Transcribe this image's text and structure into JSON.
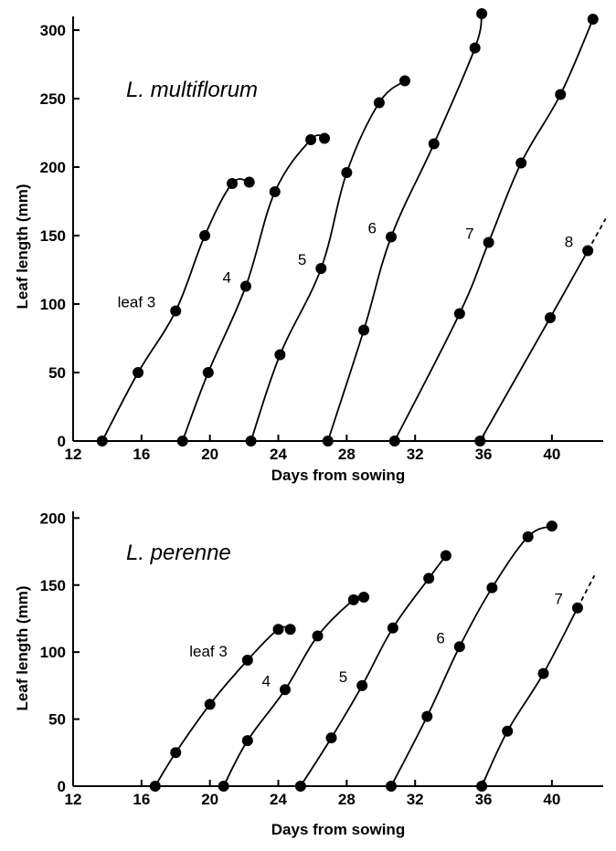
{
  "chart_data": [
    {
      "type": "line",
      "title": "L. multiflorum",
      "xlabel": "Days from sowing",
      "ylabel": "Leaf length (mm)",
      "xlim": [
        12,
        43
      ],
      "ylim": [
        0,
        310
      ],
      "x_ticks": [
        "12",
        "16",
        "20",
        "24",
        "28",
        "32",
        "36",
        "40"
      ],
      "y_ticks": [
        "0",
        "50",
        "100",
        "150",
        "200",
        "250",
        "300"
      ],
      "grid": false,
      "series": [
        {
          "name": "leaf 3",
          "x": [
            13.7,
            15.8,
            18.0,
            19.7,
            21.3,
            22.3
          ],
          "y": [
            0,
            50,
            95,
            150,
            188,
            189
          ]
        },
        {
          "name": "4",
          "x": [
            18.4,
            19.9,
            22.1,
            23.8,
            25.9,
            26.7
          ],
          "y": [
            0,
            50,
            113,
            182,
            220,
            221
          ]
        },
        {
          "name": "5",
          "x": [
            22.4,
            24.1,
            26.5,
            28.0,
            29.9,
            31.4
          ],
          "y": [
            0,
            63,
            126,
            196,
            247,
            263
          ]
        },
        {
          "name": "6",
          "x": [
            26.9,
            29.0,
            30.6,
            33.1,
            35.5,
            35.9
          ],
          "y": [
            0,
            81,
            149,
            217,
            287,
            312
          ]
        },
        {
          "name": "7",
          "x": [
            30.8,
            34.6,
            36.3,
            38.2,
            40.5,
            42.4
          ],
          "y": [
            0,
            93,
            145,
            203,
            253,
            308
          ]
        },
        {
          "name": "8",
          "x": [
            35.8,
            39.9,
            42.1
          ],
          "y": [
            0,
            90,
            139
          ]
        }
      ]
    },
    {
      "type": "line",
      "title": "L. perenne",
      "xlabel": "Days from sowing",
      "ylabel": "Leaf length (mm)",
      "xlim": [
        12,
        43
      ],
      "ylim": [
        0,
        205
      ],
      "x_ticks": [
        "12",
        "16",
        "20",
        "24",
        "28",
        "32",
        "36",
        "40"
      ],
      "y_ticks": [
        "0",
        "50",
        "100",
        "150",
        "200"
      ],
      "grid": false,
      "series": [
        {
          "name": "leaf 3",
          "x": [
            16.8,
            18.0,
            20.0,
            22.2,
            24.0,
            24.7
          ],
          "y": [
            0,
            25,
            61,
            94,
            117,
            117
          ]
        },
        {
          "name": "4",
          "x": [
            20.8,
            22.2,
            24.4,
            26.3,
            28.4,
            29.0
          ],
          "y": [
            0,
            34,
            72,
            112,
            139,
            141
          ]
        },
        {
          "name": "5",
          "x": [
            25.3,
            27.1,
            28.9,
            30.7,
            32.8,
            33.8
          ],
          "y": [
            0,
            36,
            75,
            118,
            155,
            172
          ]
        },
        {
          "name": "6",
          "x": [
            30.6,
            32.7,
            34.6,
            36.5,
            38.6,
            40.0
          ],
          "y": [
            0,
            52,
            104,
            148,
            186,
            194
          ]
        },
        {
          "name": "7",
          "x": [
            35.9,
            37.4,
            39.5,
            41.5
          ],
          "y": [
            0,
            41,
            84,
            133
          ]
        }
      ]
    }
  ]
}
